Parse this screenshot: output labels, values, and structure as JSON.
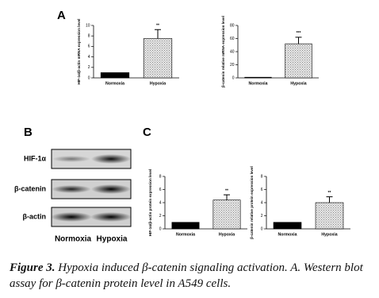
{
  "panel_labels": [
    "A",
    "B",
    "C"
  ],
  "chart_data": [
    {
      "type": "bar",
      "y_label": "HIF-1α/β-actin mRNA expression level",
      "categories": [
        "Normoxia",
        "Hypoxia"
      ],
      "values": [
        1,
        7.5
      ],
      "errors": [
        null,
        1.7
      ],
      "annotation": "**",
      "colors": [
        "#000000",
        "#8c8c8c"
      ],
      "ylim": [
        0,
        10
      ],
      "yticks": [
        0,
        2,
        4,
        6,
        8,
        10
      ]
    },
    {
      "type": "bar",
      "y_label": "β-catenin relative mRNA expression level",
      "categories": [
        "Normoxia",
        "Hypoxia"
      ],
      "values": [
        1,
        52
      ],
      "errors": [
        null,
        10
      ],
      "annotation": "***",
      "colors": [
        "#000000",
        "#8c8c8c"
      ],
      "ylim": [
        0,
        80
      ],
      "yticks": [
        0,
        20,
        40,
        60,
        80
      ]
    },
    {
      "type": "bar",
      "y_label": "HIF-1α/β-actin protein expression level",
      "categories": [
        "Normoxia",
        "Hypoxia"
      ],
      "values": [
        1,
        4.4
      ],
      "errors": [
        null,
        0.8
      ],
      "annotation": "**",
      "colors": [
        "#000000",
        "#8c8c8c"
      ],
      "ylim": [
        0,
        8
      ],
      "yticks": [
        0,
        2,
        4,
        6,
        8
      ]
    },
    {
      "type": "bar",
      "y_label": "β-catenin relative protein expression level",
      "categories": [
        "Normoxia",
        "Hypoxia"
      ],
      "values": [
        1,
        4.0
      ],
      "errors": [
        null,
        0.9
      ],
      "annotation": "**",
      "colors": [
        "#000000",
        "#8c8c8c"
      ],
      "ylim": [
        0,
        8
      ],
      "yticks": [
        0,
        2,
        4,
        6,
        8
      ]
    }
  ],
  "blot": {
    "rows": [
      "HIF-1α",
      "β-catenin",
      "β-actin"
    ],
    "lanes": [
      "Normoxia",
      "Hypoxia"
    ]
  },
  "caption": {
    "label": "Figure 3.",
    "text": "Hypoxia induced β-catenin signaling activation. A. Western blot assay for β-catenin protein level in A549 cells."
  }
}
